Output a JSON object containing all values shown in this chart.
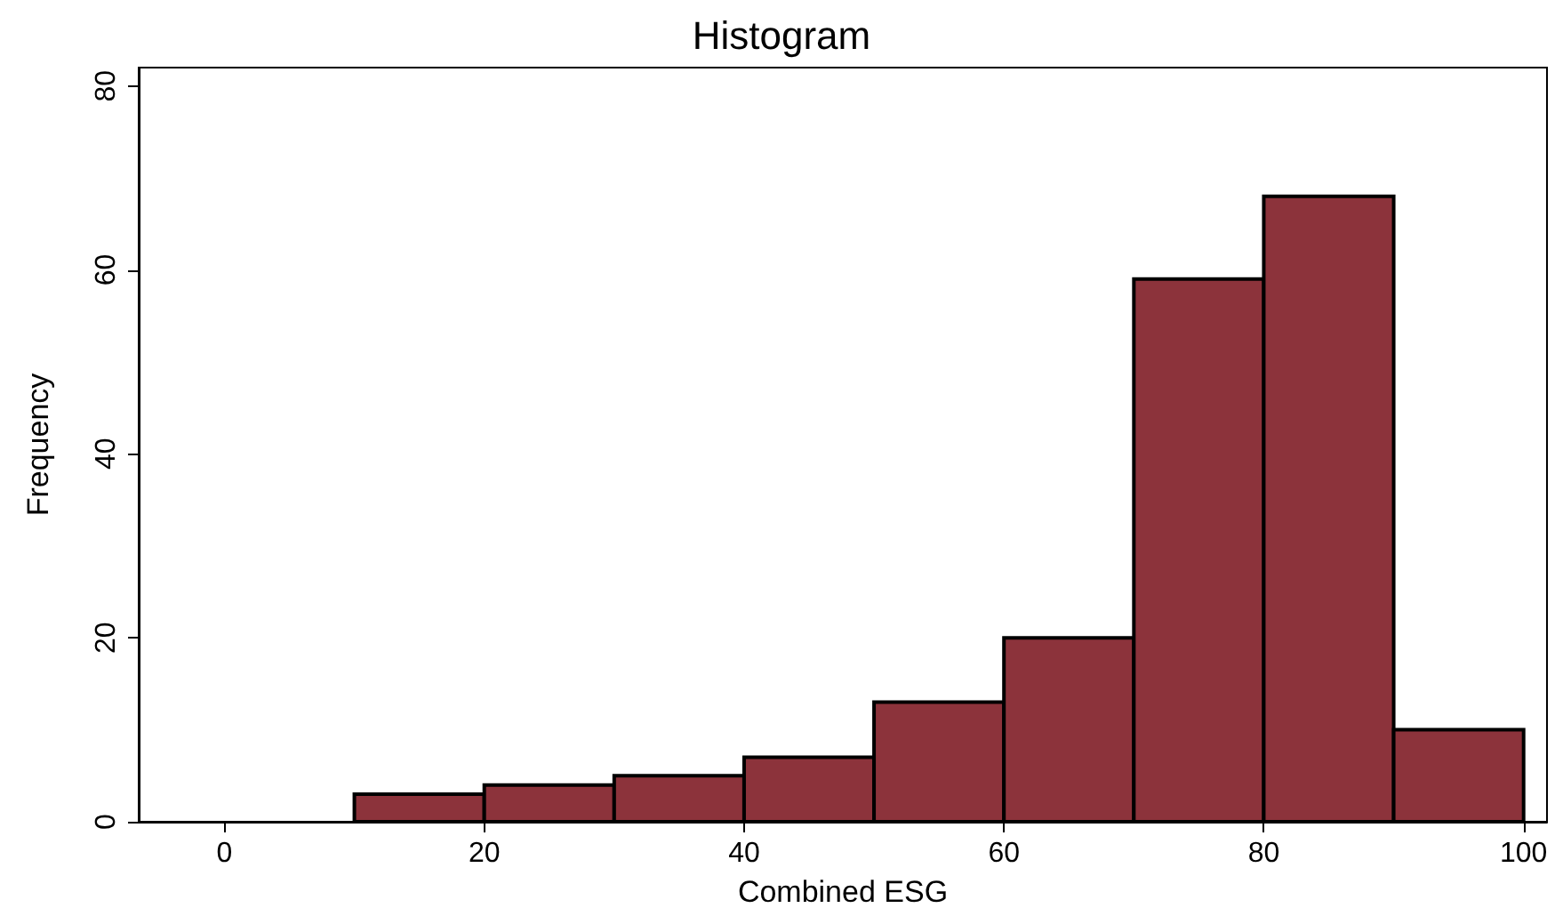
{
  "chart_data": {
    "type": "histogram",
    "title": "Histogram",
    "xlabel": "Combined ESG",
    "ylabel": "Frequency",
    "bins": [
      10,
      20,
      30,
      40,
      50,
      60,
      70,
      80,
      90,
      100
    ],
    "values": [
      3,
      4,
      5,
      7,
      13,
      20,
      59,
      68,
      10
    ],
    "color": "#8c333b",
    "xlim": [
      -6.6,
      101.8
    ],
    "xticks": [
      0,
      20,
      40,
      60,
      80,
      100
    ],
    "ylim": [
      0,
      82
    ],
    "yticks": [
      0,
      20,
      40,
      60,
      80
    ],
    "grid": false
  }
}
